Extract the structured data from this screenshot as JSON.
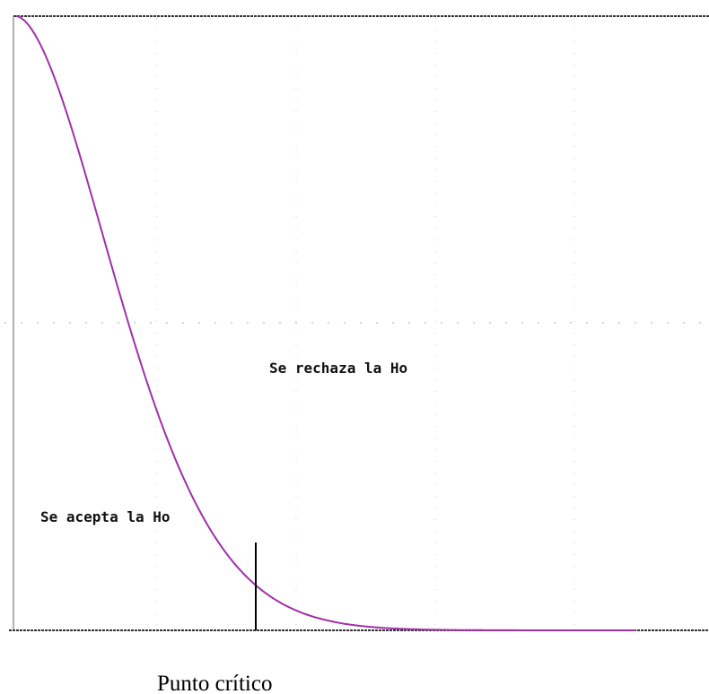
{
  "labels": {
    "reject": "Se rechaza la Ho",
    "accept": "Se acepta la Ho",
    "critical_point": "Punto crítico"
  }
}
